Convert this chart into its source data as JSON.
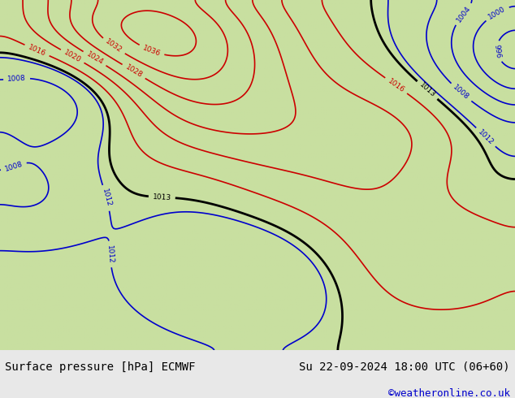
{
  "title_left": "Surface pressure [hPa] ECMWF",
  "title_right": "Su 22-09-2024 18:00 UTC (06+60)",
  "watermark": "©weatheronline.co.uk",
  "bg_color_land": "#c8dfa0",
  "bg_color_sea": "#e0ecd0",
  "fig_width": 6.34,
  "fig_height": 4.9,
  "dpi": 100,
  "bottom_bar_color": "#e8e8e8",
  "watermark_color": "#0000cc",
  "color_high": "#cc0000",
  "color_low": "#0000cc",
  "color_mean": "#000000"
}
